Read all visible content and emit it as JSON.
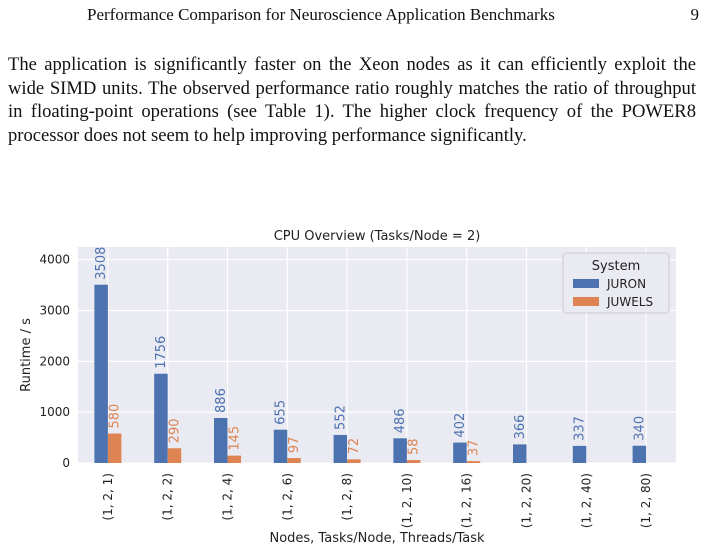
{
  "header": {
    "running_title": "Performance Comparison for Neuroscience Application Benchmarks",
    "page_number": "9"
  },
  "paragraph": "The application is significantly faster on the Xeon nodes as it can efficiently exploit the wide SIMD units. The observed performance ratio roughly matches the ratio of throughput in floating-point operations (see Table 1). The higher clock frequency of the POWER8 processor does not seem to help improving performance significantly.",
  "chart_data": {
    "type": "bar",
    "title": "CPU Overview (Tasks/Node = 2)",
    "xlabel": "Nodes, Tasks/Node, Threads/Task",
    "ylabel": "Runtime / s",
    "ylim": [
      0,
      4250
    ],
    "yticks": [
      "0",
      "1000",
      "2000",
      "3000",
      "4000"
    ],
    "grid": true,
    "legend": {
      "title": "System",
      "placement": "top-right"
    },
    "categories": [
      "(1, 2, 1)",
      "(1, 2, 2)",
      "(1, 2, 4)",
      "(1, 2, 6)",
      "(1, 2, 8)",
      "(1, 2, 10)",
      "(1, 2, 16)",
      "(1, 2, 20)",
      "(1, 2, 40)",
      "(1, 2, 80)"
    ],
    "series": [
      {
        "name": "JURON",
        "color": "#4c72b0",
        "values": [
          3508,
          1756,
          886,
          655,
          552,
          486,
          402,
          366,
          337,
          340
        ]
      },
      {
        "name": "JUWELS",
        "color": "#dd8452",
        "values": [
          580,
          290,
          145,
          97,
          72,
          58,
          37,
          null,
          null,
          null
        ]
      }
    ]
  }
}
